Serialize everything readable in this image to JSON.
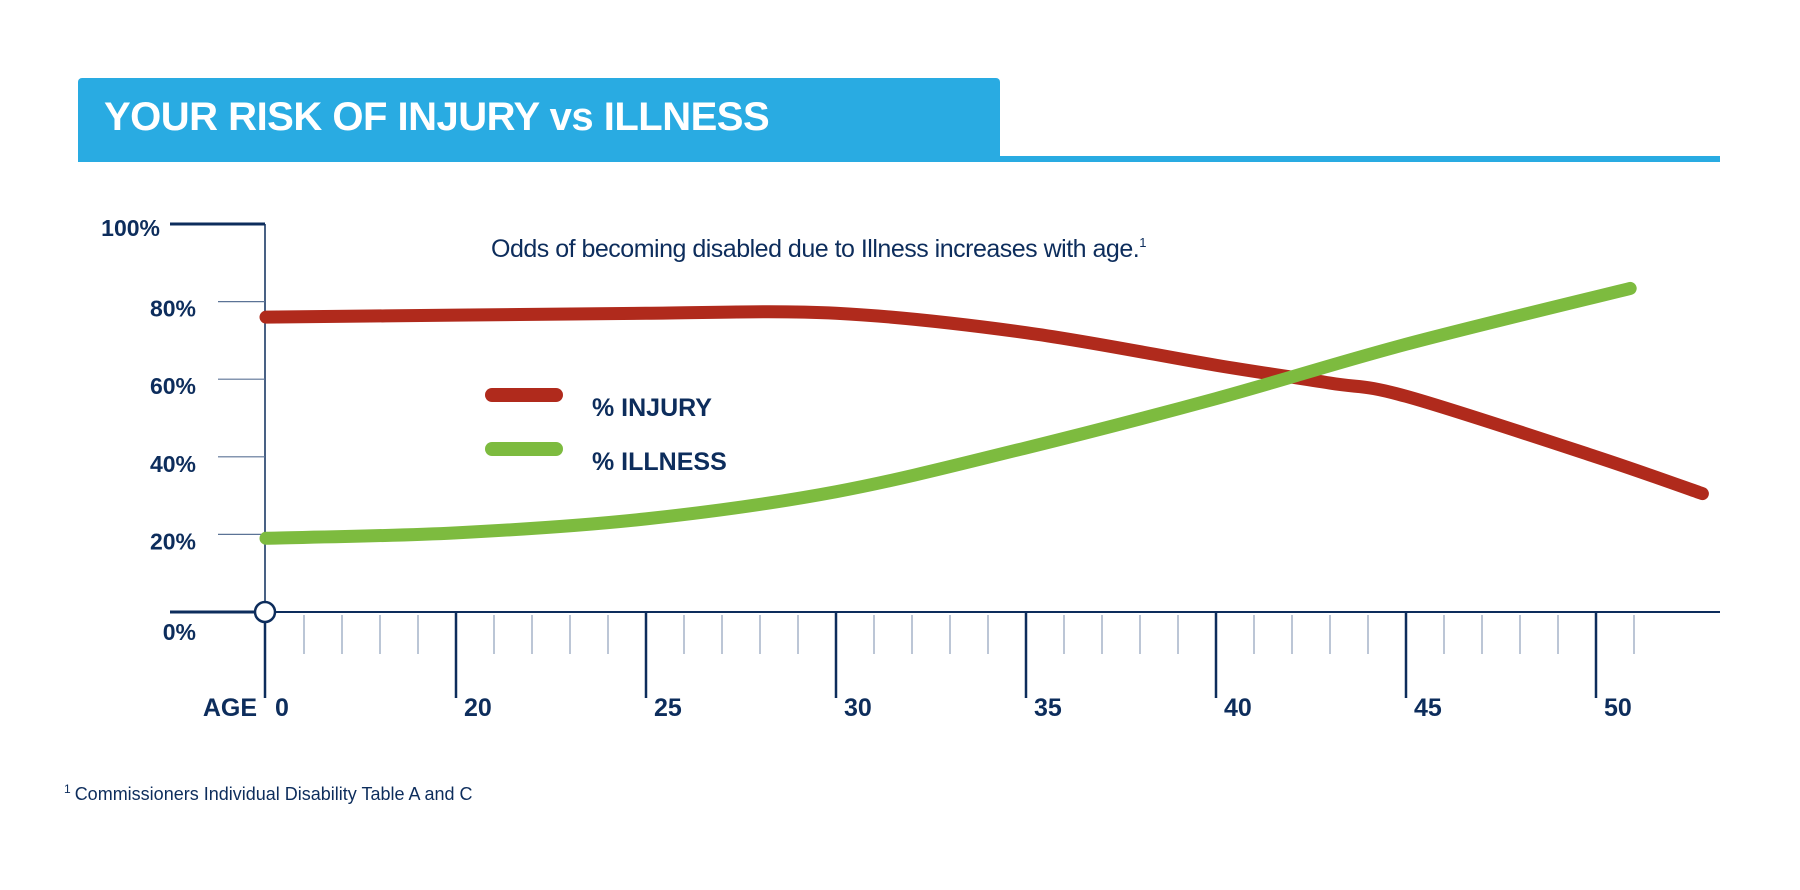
{
  "header": {
    "title": "YOUR RISK OF INJURY vs ILLNESS"
  },
  "colors": {
    "accent": "#29abe2",
    "axis": "#0d2d5c",
    "injury": "#b02a1c",
    "illness": "#7dbb3f"
  },
  "chart_data": {
    "type": "line",
    "title": "YOUR RISK OF INJURY vs ILLNESS",
    "subtitle": "Odds of becoming disabled due to Illness increases with age.",
    "subtitle_footnote_mark": "1",
    "xlabel": "AGE",
    "x_ticks": [
      "0",
      "20",
      "25",
      "30",
      "35",
      "40",
      "45",
      "50"
    ],
    "y_ticks": [
      "0%",
      "20%",
      "40%",
      "60%",
      "80%",
      "100%"
    ],
    "ylim": [
      0,
      100
    ],
    "grid": false,
    "legend_placement": "center-left",
    "series": [
      {
        "name": "% INJURY",
        "color": "#b02a1c",
        "x": [
          15,
          20,
          25,
          30,
          35,
          40,
          43,
          45,
          50,
          52.8
        ],
        "y": [
          76,
          76.5,
          77,
          77,
          72,
          63.6,
          59,
          55.6,
          40,
          30.5
        ]
      },
      {
        "name": "% ILLNESS",
        "color": "#7dbb3f",
        "x": [
          15,
          20,
          25,
          30,
          35,
          40,
          45,
          50.9
        ],
        "y": [
          19,
          20.4,
          24,
          31,
          42.3,
          55,
          69,
          83.4
        ]
      }
    ]
  },
  "footnote": {
    "mark": "1",
    "text": "Commissioners Individual Disability Table A and C"
  }
}
